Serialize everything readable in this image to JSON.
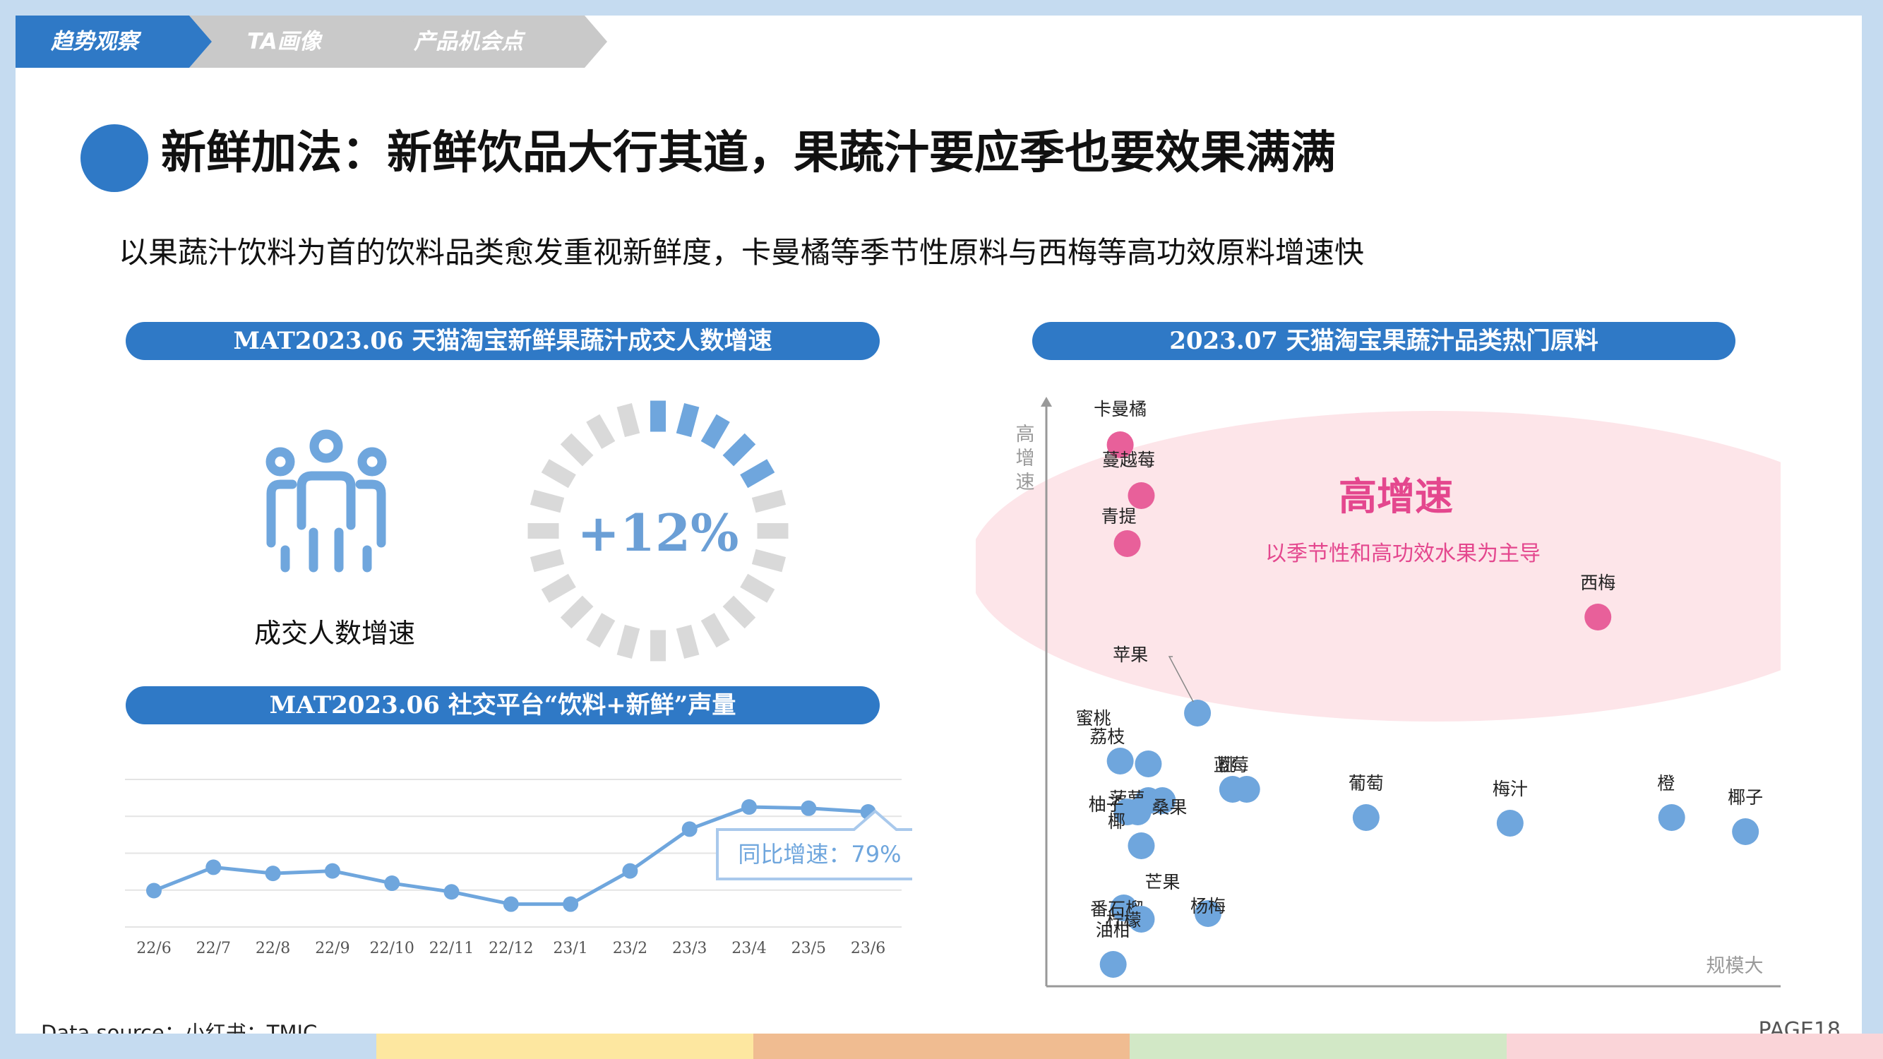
{
  "tabs": [
    {
      "label": "趋势观察",
      "active": true
    },
    {
      "label": "TA画像",
      "active": false
    },
    {
      "label": "产品机会点",
      "active": false
    }
  ],
  "title": "新鲜加法：新鲜饮品大行其道，果蔬汁要应季也要效果满满",
  "subtitle": "以果蔬汁饮料为首的饮料品类愈发重视新鲜度，卡曼橘等季节性原料与西梅等高功效原料增速快",
  "buyers_section": {
    "header": "MAT2023.06 天猫淘宝新鲜果蔬汁成交人数增速",
    "icon": "people-group-icon",
    "label": "成交人数增速",
    "growth": "+12%",
    "growth_fraction": 0.12
  },
  "social_section": {
    "header": "MAT2023.06 社交平台“饮料+新鲜”声量",
    "callout": "同比增速：79%"
  },
  "ingredients_section": {
    "header": "2023.07 天猫淘宝果蔬汁品类热门原料",
    "y_axis_label": "高增速",
    "x_axis_label": "规模大",
    "highlight_title": "高增速",
    "highlight_subtitle": "以季节性和高功效水果为主导"
  },
  "chart_data": [
    {
      "type": "line",
      "title": "MAT2023.06 社交平台“饮料+新鲜”声量",
      "categories": [
        "22/6",
        "22/7",
        "22/8",
        "22/9",
        "22/10",
        "22/11",
        "22/12",
        "23/1",
        "23/2",
        "23/3",
        "23/4",
        "23/5",
        "23/6"
      ],
      "values": [
        29,
        48,
        43,
        45,
        35,
        28,
        18,
        18,
        45,
        79,
        97,
        96,
        93
      ],
      "ylim": [
        0,
        120
      ],
      "grid": true,
      "legend": "none",
      "annotation": "同比增速：79%"
    },
    {
      "type": "scatter",
      "title": "2023.07 天猫淘宝果蔬汁品类热门原料",
      "xlabel": "规模大",
      "ylabel": "高增速",
      "xlim": [
        0,
        100
      ],
      "ylim": [
        0,
        100
      ],
      "grid": false,
      "points": [
        {
          "name": "卡曼橘",
          "x": 7.5,
          "y": 94,
          "group": "high"
        },
        {
          "name": "蔓越莓",
          "x": 10.5,
          "y": 85,
          "group": "high"
        },
        {
          "name": "青提",
          "x": 8.5,
          "y": 76.5,
          "group": "high"
        },
        {
          "name": "西梅",
          "x": 75.5,
          "y": 63.5,
          "group": "high"
        },
        {
          "name": "苹果",
          "x": 18.5,
          "y": 46.5
        },
        {
          "name": "蜜桃",
          "x": 7.5,
          "y": 38
        },
        {
          "name": "荔枝",
          "x": 11.5,
          "y": 37.5
        },
        {
          "name": "桃",
          "x": 23.5,
          "y": 33
        },
        {
          "name": "蓝莓",
          "x": 25.5,
          "y": 33
        },
        {
          "name": "菠萝",
          "x": 11.5,
          "y": 31
        },
        {
          "name": "桑果",
          "x": 13.5,
          "y": 31
        },
        {
          "name": "柚子",
          "x": 8.5,
          "y": 29
        },
        {
          "name": "椰",
          "x": 10,
          "y": 29
        },
        {
          "name": "芒果",
          "x": 10.5,
          "y": 23
        },
        {
          "name": "杨梅",
          "x": 20,
          "y": 11
        },
        {
          "name": "葡萄",
          "x": 42.5,
          "y": 28
        },
        {
          "name": "梅汁",
          "x": 63,
          "y": 27
        },
        {
          "name": "橙",
          "x": 86,
          "y": 28
        },
        {
          "name": "椰子",
          "x": 96.5,
          "y": 25.5
        },
        {
          "name": "番石榴",
          "x": 8,
          "y": 12
        },
        {
          "name": "柠檬",
          "x": 10.5,
          "y": 10
        },
        {
          "name": "油柑",
          "x": 6.5,
          "y": 2
        }
      ]
    }
  ],
  "footer": {
    "source": "Data source：小红书；TMIC",
    "page": "PAGE18"
  },
  "colors": {
    "accent_blue": "#2f79c6",
    "point_blue": "#6fa6dd",
    "point_pink": "#e8609a",
    "highlight_fill": "#fde5e9",
    "highlight_text": "#e4478e",
    "tab_inactive": "#c9c9c9",
    "bottom_stripes": [
      "#c5dbf0",
      "#fde7a0",
      "#f0bc91",
      "#d2e8c6",
      "#fad4d8"
    ]
  }
}
